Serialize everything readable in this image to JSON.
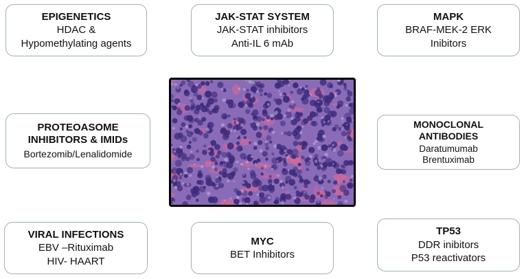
{
  "boxes": {
    "epigenetics": {
      "title": "EPIGENETICS",
      "lines": [
        "HDAC &",
        "Hypomethylating agents"
      ]
    },
    "jak_stat": {
      "title": "JAK-STAT SYSTEM",
      "lines": [
        "JAK-STAT inhibitors",
        "Anti-IL 6 mAb"
      ]
    },
    "mapk": {
      "title": "MAPK",
      "lines": [
        "BRAF-MEK-2 ERK",
        "Inibitors"
      ]
    },
    "proteasome": {
      "title_lines": [
        "PROTEOASOME",
        "INHIBITORS & IMIDs"
      ],
      "lines": [
        "Bortezomib/Lenalidomide"
      ]
    },
    "monoclonal": {
      "title_lines": [
        "MONOCLONAL",
        "ANTIBODIES"
      ],
      "lines": [
        "Daratumumab",
        "Brentuximab"
      ]
    },
    "viral": {
      "title": "VIRAL INFECTIONS",
      "lines": [
        "EBV –Rituximab",
        "HIV- HAART"
      ]
    },
    "myc": {
      "title": "MYC",
      "lines": [
        "BET Inhibitors"
      ]
    },
    "tp53": {
      "title": "TP53",
      "lines": [
        "DDR inibitors",
        "P53 reactivators"
      ]
    }
  },
  "colors": {
    "box_border": "#9fb0b8",
    "tissue_base": "#8a6bb8",
    "nucleus": "#3d2a7a",
    "eosin": "#d46a9a"
  }
}
